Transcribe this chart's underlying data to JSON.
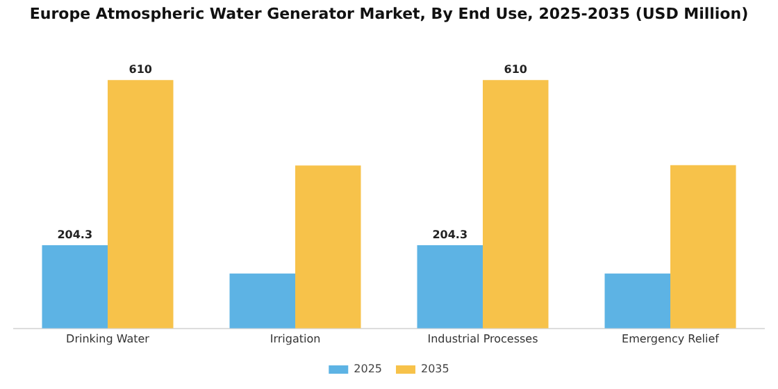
{
  "chart_data": {
    "type": "bar",
    "title": "Europe Atmospheric Water Generator Market, By End Use, 2025-2035 (USD Million)",
    "categories": [
      "Drinking Water",
      "Irrigation",
      "Industrial Processes",
      "Emergency Relief"
    ],
    "series": [
      {
        "name": "2025",
        "color": "#5db3e4",
        "values": [
          204.3,
          135,
          204.3,
          135
        ],
        "value_labels": [
          "204.3",
          null,
          "204.3",
          null
        ]
      },
      {
        "name": "2035",
        "color": "#f7c24a",
        "values": [
          610,
          400,
          610,
          401
        ],
        "value_labels": [
          "610",
          null,
          "610",
          null
        ]
      }
    ],
    "legend": "bottom",
    "grid": false
  }
}
